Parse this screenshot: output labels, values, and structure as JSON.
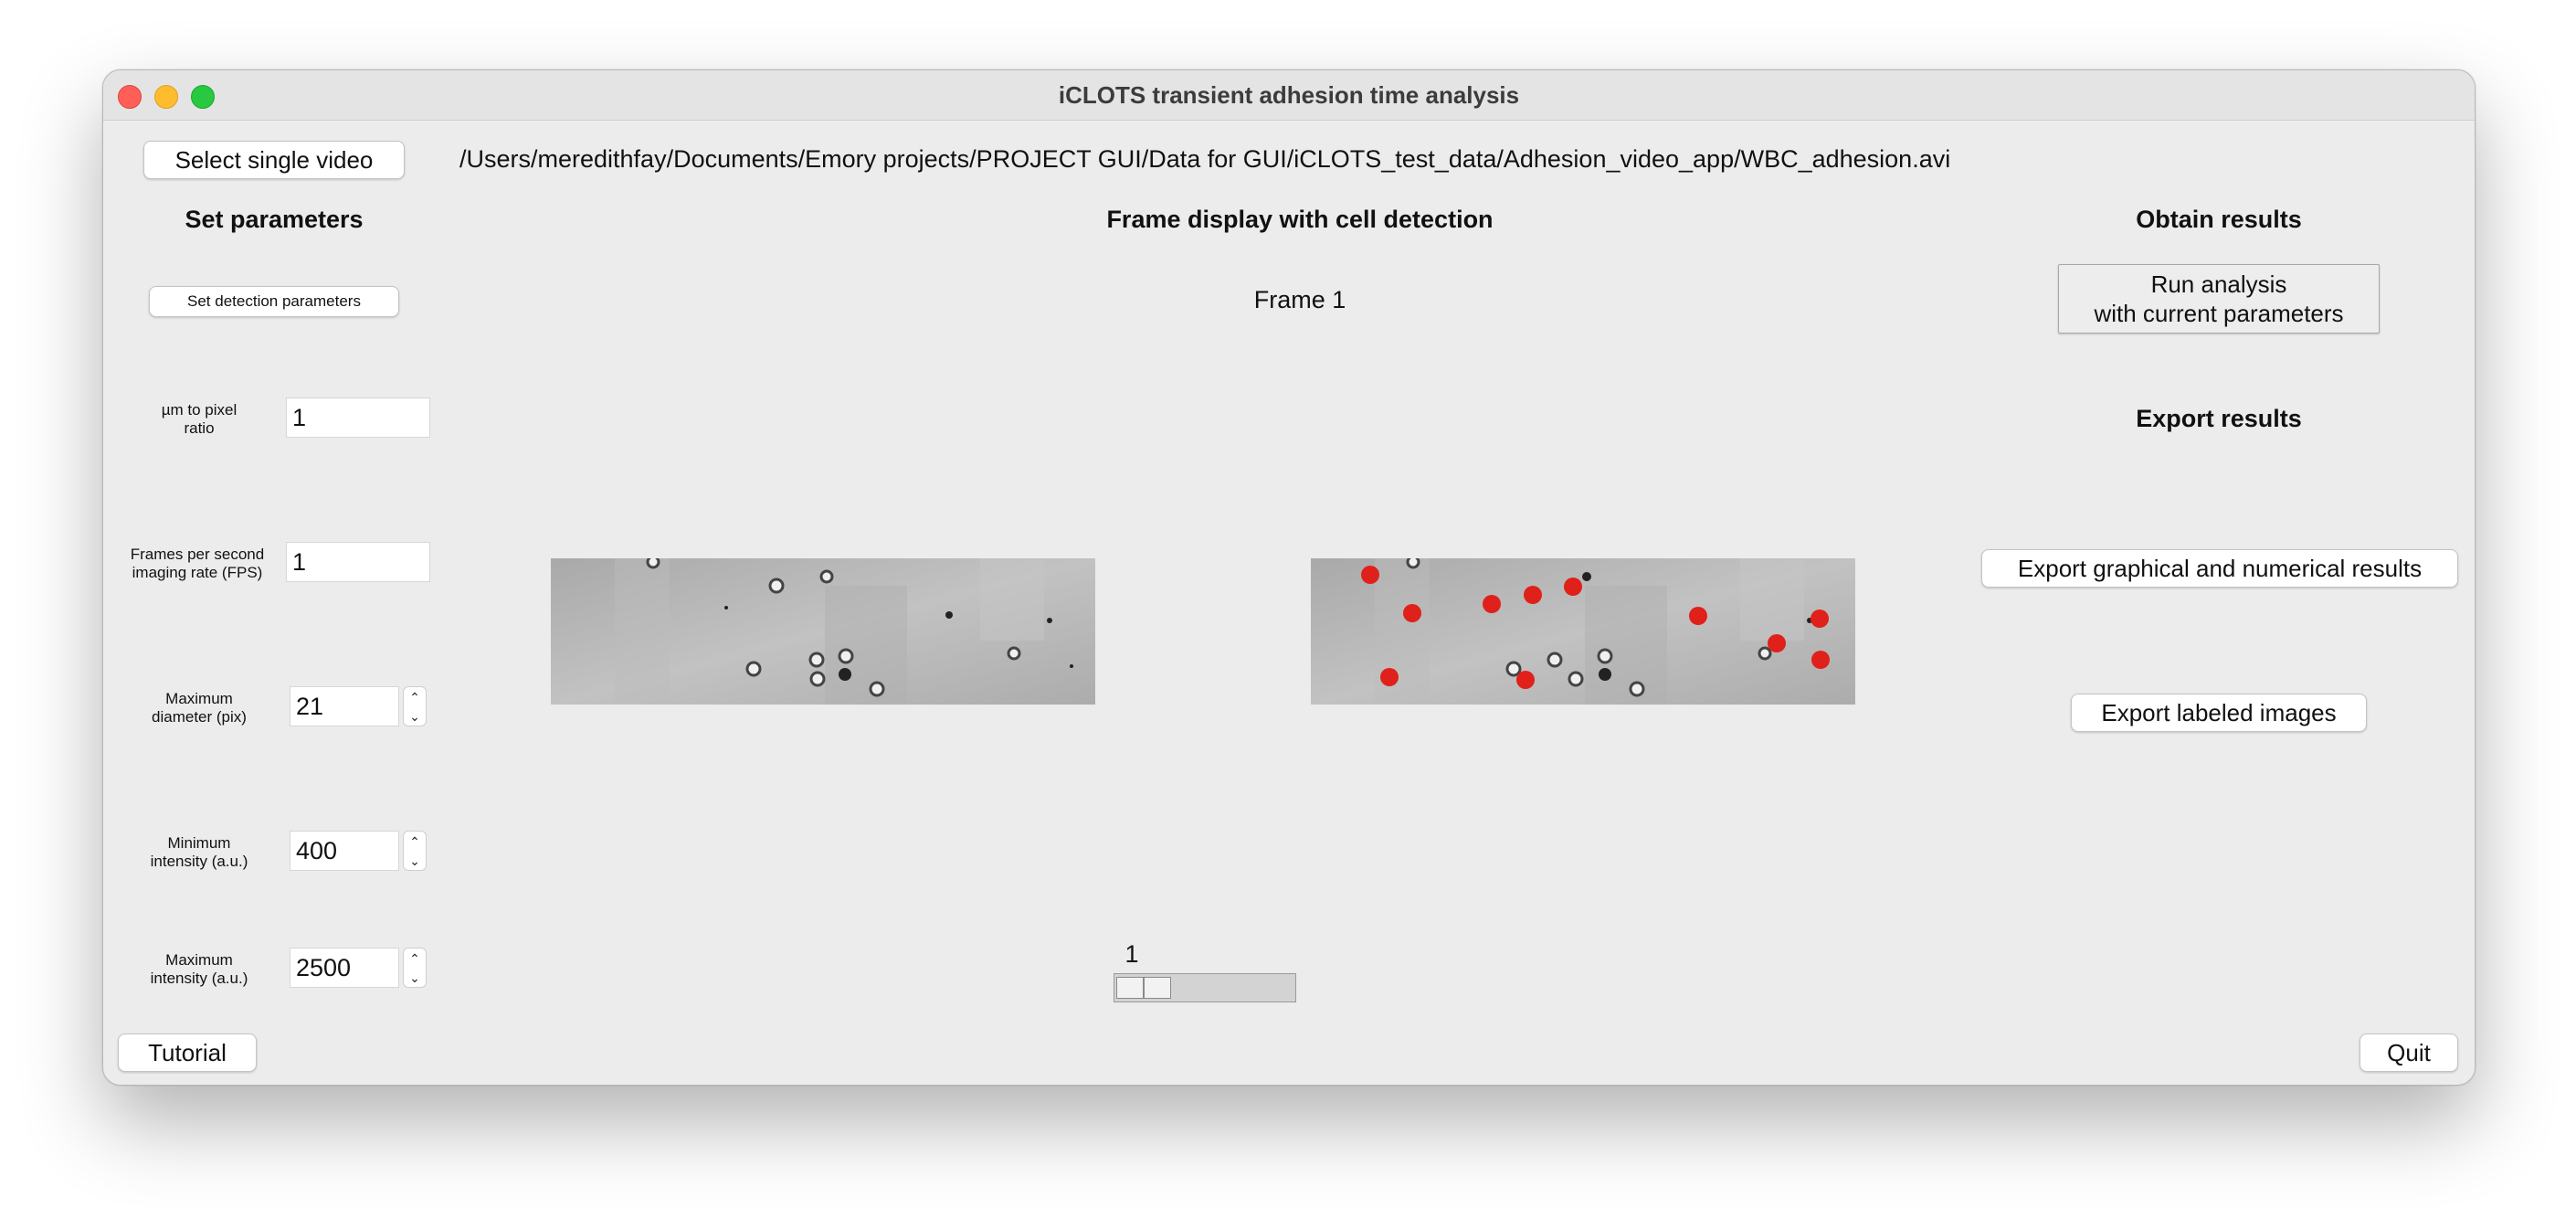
{
  "window": {
    "title": "iCLOTS transient adhesion time analysis"
  },
  "top": {
    "select_button": "Select single video",
    "file_path": "/Users/meredithfay/Documents/Emory projects/PROJECT GUI/Data for GUI/iCLOTS_test_data/Adhesion_video_app/WBC_adhesion.avi"
  },
  "left": {
    "heading": "Set parameters",
    "detection_button": "Set detection parameters",
    "params": [
      {
        "label_line1": "µm to pixel",
        "label_line2": "ratio",
        "value": "1"
      },
      {
        "label_line1": "Frames per second",
        "label_line2": "imaging rate (FPS)",
        "value": "1"
      },
      {
        "label_line1": "Maximum",
        "label_line2": "diameter (pix)",
        "value": "21"
      },
      {
        "label_line1": "Minimum",
        "label_line2": "intensity (a.u.)",
        "value": "400"
      },
      {
        "label_line1": "Maximum",
        "label_line2": "intensity (a.u.)",
        "value": "2500"
      }
    ],
    "tutorial_button": "Tutorial"
  },
  "center": {
    "heading": "Frame display with cell detection",
    "frame_label": "Frame 1",
    "slider_value": "1",
    "slider_fraction": 0.2
  },
  "right": {
    "heading_obtain": "Obtain results",
    "run_button_line1": "Run analysis",
    "run_button_line2": "with current parameters",
    "heading_export": "Export results",
    "export_graph_button": "Export graphical and numerical results",
    "export_images_button": "Export labeled images",
    "quit_button": "Quit"
  },
  "colors": {
    "detection_marker": "#e0201a",
    "window_bg": "#ececec"
  },
  "icons": [
    "close-icon",
    "minimize-icon",
    "zoom-icon",
    "chevron-up-icon",
    "chevron-down-icon"
  ]
}
